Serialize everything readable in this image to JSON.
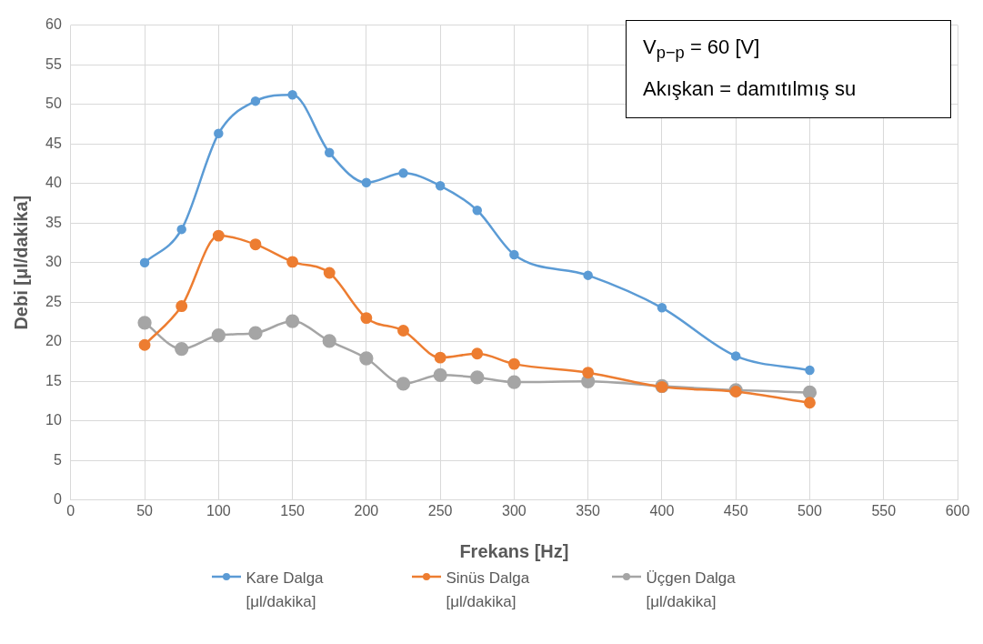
{
  "chart_data": {
    "type": "line",
    "xlabel": "Frekans [Hz]",
    "ylabel": "Debi [μl/dakika]",
    "annotations": [
      "V$_{p−p}$ = 60 [V]",
      "Akışkan = damıtılmış su"
    ],
    "x": [
      50,
      75,
      100,
      125,
      150,
      175,
      200,
      225,
      250,
      275,
      300,
      350,
      400,
      450,
      500
    ],
    "series": [
      {
        "name": "Kare Dalga [μl/dakika]",
        "color": "#5b9bd5",
        "values": [
          30.0,
          34.2,
          46.3,
          50.4,
          51.2,
          43.9,
          40.1,
          41.3,
          39.7,
          36.6,
          31.0,
          28.4,
          24.3,
          18.2,
          16.4
        ]
      },
      {
        "name": "Sinüs Dalga [μl/dakika]",
        "color": "#ed7d31",
        "values": [
          19.6,
          24.5,
          33.4,
          32.3,
          30.1,
          28.7,
          23.0,
          21.4,
          18.0,
          18.5,
          17.2,
          16.1,
          14.3,
          13.7,
          12.3
        ]
      },
      {
        "name": "Üçgen Dalga [μl/dakika]",
        "color": "#a5a5a5",
        "values": [
          22.4,
          19.1,
          20.8,
          21.1,
          22.6,
          20.1,
          17.9,
          14.7,
          15.8,
          15.5,
          14.9,
          15.0,
          14.4,
          13.9,
          13.6
        ]
      }
    ],
    "xlim": [
      0,
      600
    ],
    "xticks": [
      0,
      50,
      100,
      150,
      200,
      250,
      300,
      350,
      400,
      450,
      500,
      550,
      600
    ],
    "ylim": [
      0,
      60
    ],
    "yticks": [
      0,
      5,
      10,
      15,
      20,
      25,
      30,
      35,
      40,
      45,
      50,
      55,
      60
    ],
    "grid": true,
    "legend": "bottom",
    "marker": "circle"
  }
}
